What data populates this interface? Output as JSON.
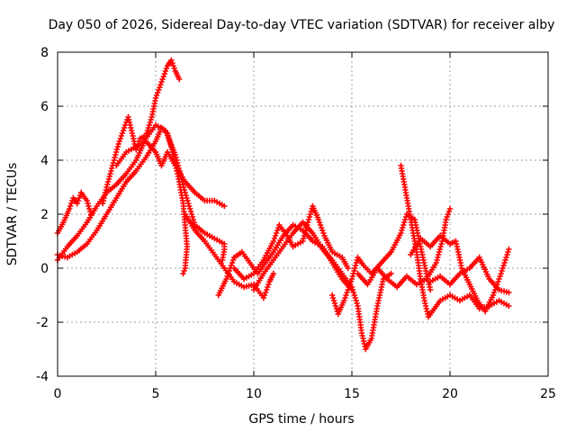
{
  "chart_data": {
    "type": "scatter",
    "title": "Day 050 of 2026, Sidereal Day-to-day VTEC variation (SDTVAR) for receiver alby",
    "xlabel": "GPS time / hours",
    "ylabel": "SDTVAR / TECUs",
    "xlim": [
      0,
      25
    ],
    "ylim": [
      -4,
      8
    ],
    "xticks": [
      0,
      5,
      10,
      15,
      20,
      25
    ],
    "yticks": [
      -4,
      -2,
      0,
      2,
      4,
      6,
      8
    ],
    "grid": true,
    "marker": "+",
    "color": "#ff0000",
    "series": [
      {
        "name": "trace-1",
        "points": [
          [
            0.0,
            1.3
          ],
          [
            0.3,
            1.7
          ],
          [
            0.6,
            2.2
          ],
          [
            0.8,
            2.6
          ],
          [
            1.0,
            2.4
          ],
          [
            1.2,
            2.8
          ],
          [
            1.5,
            2.5
          ],
          [
            1.7,
            2.0
          ]
        ]
      },
      {
        "name": "trace-2",
        "points": [
          [
            0.0,
            0.5
          ],
          [
            0.5,
            0.4
          ],
          [
            1.0,
            0.6
          ],
          [
            1.5,
            0.9
          ],
          [
            2.0,
            1.4
          ],
          [
            2.5,
            2.0
          ],
          [
            3.0,
            2.6
          ],
          [
            3.5,
            3.2
          ],
          [
            4.0,
            3.6
          ],
          [
            4.5,
            4.1
          ],
          [
            5.0,
            4.7
          ],
          [
            5.3,
            5.2
          ],
          [
            5.6,
            5.0
          ],
          [
            5.9,
            4.2
          ],
          [
            6.2,
            3.2
          ],
          [
            6.4,
            2.4
          ],
          [
            6.5,
            1.6
          ],
          [
            6.6,
            0.8
          ],
          [
            6.5,
            0.0
          ],
          [
            6.4,
            -0.2
          ]
        ]
      },
      {
        "name": "trace-3",
        "points": [
          [
            0.0,
            0.3
          ],
          [
            0.5,
            0.8
          ],
          [
            1.0,
            1.2
          ],
          [
            1.5,
            1.7
          ],
          [
            2.0,
            2.3
          ],
          [
            2.5,
            2.8
          ],
          [
            3.0,
            3.1
          ],
          [
            3.5,
            3.5
          ],
          [
            4.0,
            4.0
          ],
          [
            4.5,
            4.8
          ],
          [
            5.0,
            5.3
          ],
          [
            5.5,
            5.1
          ],
          [
            6.0,
            4.2
          ],
          [
            6.5,
            2.8
          ],
          [
            7.0,
            1.6
          ],
          [
            7.5,
            1.3
          ],
          [
            8.0,
            1.1
          ],
          [
            8.5,
            0.9
          ],
          [
            8.5,
            0.7
          ],
          [
            8.4,
            0.3
          ]
        ]
      },
      {
        "name": "trace-4",
        "points": [
          [
            2.3,
            2.4
          ],
          [
            2.5,
            3.0
          ],
          [
            2.8,
            3.8
          ],
          [
            3.1,
            4.6
          ],
          [
            3.4,
            5.2
          ],
          [
            3.6,
            5.6
          ],
          [
            3.8,
            5.0
          ],
          [
            4.0,
            4.4
          ],
          [
            4.2,
            4.8
          ],
          [
            4.5,
            4.9
          ],
          [
            4.8,
            5.6
          ],
          [
            5.0,
            6.3
          ],
          [
            5.3,
            6.9
          ],
          [
            5.6,
            7.5
          ],
          [
            5.8,
            7.7
          ],
          [
            6.0,
            7.3
          ],
          [
            6.2,
            7.0
          ]
        ]
      },
      {
        "name": "trace-5",
        "points": [
          [
            3.0,
            3.8
          ],
          [
            3.5,
            4.3
          ],
          [
            4.0,
            4.5
          ],
          [
            4.5,
            4.7
          ],
          [
            5.0,
            4.3
          ],
          [
            5.3,
            3.8
          ],
          [
            5.6,
            4.3
          ],
          [
            6.0,
            3.8
          ],
          [
            6.5,
            3.2
          ],
          [
            7.0,
            2.8
          ],
          [
            7.5,
            2.5
          ],
          [
            8.0,
            2.5
          ],
          [
            8.5,
            2.3
          ]
        ]
      },
      {
        "name": "trace-6",
        "points": [
          [
            6.5,
            2.0
          ],
          [
            7.0,
            1.4
          ],
          [
            7.5,
            1.0
          ],
          [
            8.0,
            0.5
          ],
          [
            8.5,
            0.0
          ],
          [
            9.0,
            -0.5
          ],
          [
            9.5,
            -0.7
          ],
          [
            10.0,
            -0.6
          ],
          [
            10.5,
            -1.1
          ],
          [
            10.8,
            -0.5
          ],
          [
            11.0,
            -0.2
          ]
        ]
      },
      {
        "name": "trace-7",
        "points": [
          [
            8.2,
            -1.0
          ],
          [
            8.6,
            -0.4
          ],
          [
            9.0,
            0.4
          ],
          [
            9.4,
            0.6
          ],
          [
            9.8,
            0.2
          ],
          [
            10.2,
            -0.2
          ],
          [
            10.6,
            0.2
          ],
          [
            11.0,
            0.6
          ],
          [
            11.5,
            1.2
          ],
          [
            12.0,
            1.6
          ],
          [
            12.5,
            1.4
          ],
          [
            13.0,
            1.0
          ],
          [
            13.5,
            0.8
          ],
          [
            14.0,
            0.2
          ],
          [
            14.5,
            -0.4
          ],
          [
            15.0,
            -0.8
          ]
        ]
      },
      {
        "name": "trace-8",
        "points": [
          [
            9.0,
            0.0
          ],
          [
            9.5,
            -0.4
          ],
          [
            10.0,
            -0.2
          ],
          [
            10.5,
            0.3
          ],
          [
            11.0,
            1.0
          ],
          [
            11.3,
            1.6
          ],
          [
            11.7,
            1.2
          ],
          [
            12.0,
            0.8
          ],
          [
            12.5,
            1.0
          ],
          [
            12.8,
            1.8
          ],
          [
            13.0,
            2.3
          ],
          [
            13.3,
            1.8
          ],
          [
            13.6,
            1.2
          ],
          [
            14.0,
            0.6
          ],
          [
            14.5,
            0.4
          ],
          [
            14.8,
            0.0
          ]
        ]
      },
      {
        "name": "trace-9",
        "points": [
          [
            10.0,
            -0.8
          ],
          [
            10.5,
            -0.2
          ],
          [
            11.0,
            0.3
          ],
          [
            11.5,
            0.8
          ],
          [
            12.0,
            1.3
          ],
          [
            12.5,
            1.7
          ],
          [
            13.0,
            1.3
          ],
          [
            13.5,
            0.7
          ],
          [
            14.0,
            0.3
          ],
          [
            14.5,
            -0.2
          ],
          [
            15.0,
            -0.7
          ],
          [
            15.3,
            -1.4
          ],
          [
            15.5,
            -2.4
          ],
          [
            15.7,
            -3.0
          ],
          [
            16.0,
            -2.6
          ],
          [
            16.3,
            -1.4
          ],
          [
            16.6,
            -0.4
          ],
          [
            17.0,
            -0.2
          ]
        ]
      },
      {
        "name": "trace-10",
        "points": [
          [
            14.0,
            -1.0
          ],
          [
            14.3,
            -1.7
          ],
          [
            14.6,
            -1.2
          ],
          [
            15.0,
            -0.4
          ],
          [
            15.3,
            0.4
          ],
          [
            15.6,
            0.1
          ],
          [
            16.0,
            -0.2
          ],
          [
            16.5,
            0.2
          ],
          [
            17.0,
            0.6
          ],
          [
            17.5,
            1.3
          ],
          [
            17.8,
            2.0
          ],
          [
            18.2,
            1.8
          ],
          [
            18.5,
            0.8
          ],
          [
            18.8,
            -0.2
          ],
          [
            19.0,
            -0.8
          ]
        ]
      },
      {
        "name": "trace-11",
        "points": [
          [
            17.5,
            3.8
          ],
          [
            17.7,
            3.0
          ],
          [
            17.9,
            2.2
          ],
          [
            18.1,
            1.4
          ],
          [
            18.3,
            0.6
          ],
          [
            18.5,
            -0.4
          ],
          [
            18.7,
            -1.2
          ],
          [
            18.9,
            -1.8
          ],
          [
            19.2,
            -1.5
          ],
          [
            19.5,
            -1.2
          ],
          [
            20.0,
            -1.0
          ],
          [
            20.5,
            -1.2
          ],
          [
            21.0,
            -1.0
          ],
          [
            21.5,
            -1.5
          ],
          [
            22.0,
            -1.4
          ],
          [
            22.5,
            -1.2
          ],
          [
            23.0,
            -1.4
          ]
        ]
      },
      {
        "name": "trace-12",
        "points": [
          [
            15.3,
            -0.2
          ],
          [
            15.8,
            -0.6
          ],
          [
            16.3,
            0.0
          ],
          [
            16.8,
            -0.4
          ],
          [
            17.3,
            -0.7
          ],
          [
            17.8,
            -0.3
          ],
          [
            18.3,
            -0.6
          ],
          [
            18.8,
            -0.4
          ],
          [
            19.3,
            0.2
          ],
          [
            19.6,
            1.0
          ],
          [
            19.8,
            1.8
          ],
          [
            20.0,
            2.2
          ]
        ]
      },
      {
        "name": "trace-13",
        "points": [
          [
            18.0,
            0.5
          ],
          [
            18.5,
            1.1
          ],
          [
            19.0,
            0.8
          ],
          [
            19.5,
            1.2
          ],
          [
            20.0,
            0.9
          ],
          [
            20.3,
            1.0
          ],
          [
            20.6,
            0.0
          ],
          [
            21.0,
            -0.6
          ],
          [
            21.4,
            -1.2
          ],
          [
            21.8,
            -1.6
          ],
          [
            22.2,
            -1.0
          ],
          [
            22.6,
            -0.2
          ],
          [
            23.0,
            0.7
          ]
        ]
      },
      {
        "name": "trace-14",
        "points": [
          [
            19.0,
            -0.5
          ],
          [
            19.5,
            -0.3
          ],
          [
            20.0,
            -0.6
          ],
          [
            20.5,
            -0.2
          ],
          [
            21.0,
            0.0
          ],
          [
            21.5,
            0.4
          ],
          [
            22.0,
            -0.4
          ],
          [
            22.5,
            -0.8
          ],
          [
            23.0,
            -0.9
          ]
        ]
      }
    ]
  }
}
